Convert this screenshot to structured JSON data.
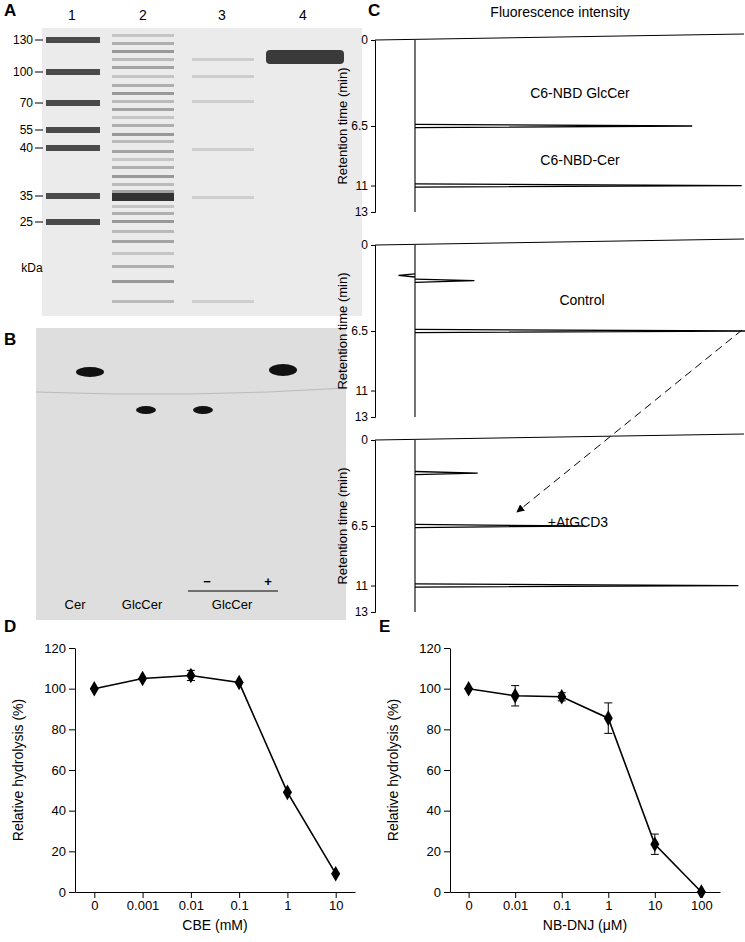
{
  "gel": {
    "label": "A",
    "lanes": [
      "1",
      "2",
      "3",
      "4"
    ],
    "markers": [
      130,
      100,
      70,
      55,
      40,
      35,
      25
    ],
    "unit": "kDa"
  },
  "tlc": {
    "label": "B",
    "lanes": [
      "Cer",
      "GlcCer",
      "GlcCer"
    ],
    "signs": [
      "−",
      "+"
    ]
  },
  "hplc": {
    "label": "C",
    "title": "Fluorescence intensity",
    "y_label": "Retention time (min)",
    "ylim": [
      0,
      13
    ],
    "yticks": [
      0,
      6.5,
      11,
      13
    ],
    "xlim": [
      -10,
      100
    ],
    "traces": [
      {
        "labels": [
          "C6-NBD GlcCer",
          "C6-NBD-Cer"
        ],
        "peaks": [
          {
            "time": 6.5,
            "height": 84
          },
          {
            "time": 11,
            "height": 99
          }
        ]
      },
      {
        "labels": [
          "Control"
        ],
        "peaks": [
          {
            "time": 2.3,
            "height": -5
          },
          {
            "time": 2.7,
            "height": 18
          },
          {
            "time": 6.5,
            "height": 100
          }
        ]
      },
      {
        "labels": [
          "+AtGCD3"
        ],
        "peaks": [
          {
            "time": 2.5,
            "height": 19
          },
          {
            "time": 6.5,
            "height": 51
          },
          {
            "time": 11,
            "height": 98
          }
        ]
      }
    ]
  },
  "chart_data": [
    {
      "type": "line",
      "title": "D",
      "x_label": "CBE (mM)",
      "y_label": "Relative hydrolysis (%)",
      "categories": [
        "0",
        "0.001",
        "0.01",
        "0.1",
        "1",
        "10"
      ],
      "values": [
        100,
        105,
        106.5,
        103,
        49,
        9
      ],
      "errors": [
        0,
        0,
        2.5,
        0,
        0,
        0
      ],
      "ylim": [
        0,
        120
      ],
      "yticks": [
        0,
        20,
        40,
        60,
        80,
        100,
        120
      ],
      "color": "#000000",
      "marker": "diamond",
      "line_style": "solid"
    },
    {
      "type": "line",
      "title": "E",
      "x_label": "NB-DNJ (μM)",
      "y_label": "Relative hydrolysis (%)",
      "categories": [
        "0",
        "0.01",
        "0.1",
        "1",
        "10",
        "100"
      ],
      "values": [
        100,
        96.5,
        96,
        85.5,
        23.5,
        0
      ],
      "errors": [
        0,
        5,
        2,
        7.5,
        5,
        0
      ],
      "ylim": [
        0,
        120
      ],
      "yticks": [
        0,
        20,
        40,
        60,
        80,
        100,
        120
      ],
      "color": "#000000",
      "marker": "diamond",
      "line_style": "solid"
    }
  ]
}
